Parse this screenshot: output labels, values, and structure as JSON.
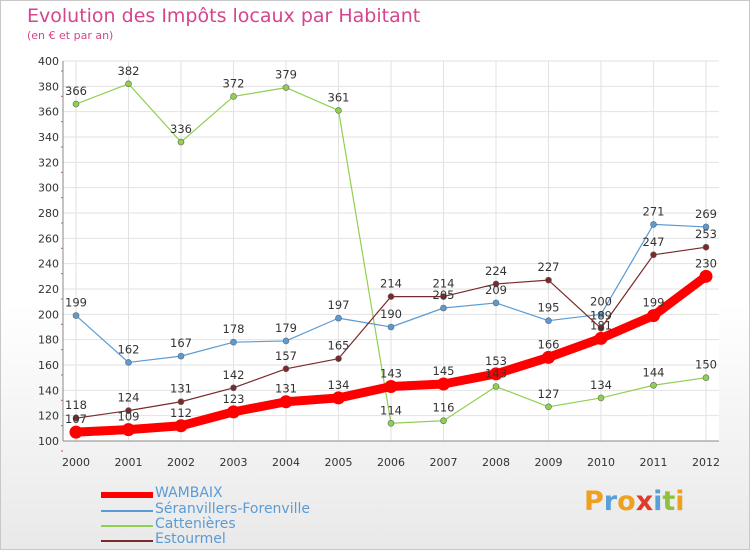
{
  "chart_data": {
    "type": "line",
    "title": "Evolution des Impôts locaux par Habitant",
    "subtitle": "(en € et par an)",
    "x": [
      "2000",
      "2001",
      "2002",
      "2003",
      "2004",
      "2005",
      "2006",
      "2007",
      "2008",
      "2009",
      "2010",
      "2011",
      "2012"
    ],
    "ylim": [
      100,
      400
    ],
    "yticks": [
      "100",
      "120",
      "140",
      "160",
      "180",
      "200",
      "220",
      "240",
      "260",
      "280",
      "300",
      "320",
      "340",
      "360",
      "380",
      "400"
    ],
    "grid": true,
    "legend_position": "bottom-left",
    "series": [
      {
        "name": "WAMBAIX",
        "color": "#ff0000",
        "values": [
          107,
          109,
          112,
          123,
          131,
          134,
          143,
          145,
          153,
          166,
          181,
          199,
          230
        ],
        "labels": [
          "107",
          "109",
          "112",
          "123",
          "131",
          "134",
          "143",
          "145",
          "153",
          "166",
          "181",
          "199",
          "230"
        ]
      },
      {
        "name": "Séranvillers-Forenville",
        "color": "#5b9bd5",
        "values": [
          199,
          162,
          167,
          178,
          179,
          197,
          190,
          205,
          209,
          195,
          200,
          271,
          269
        ],
        "labels": [
          "199",
          "162",
          "167",
          "178",
          "179",
          "197",
          "190",
          "205",
          "209",
          "195",
          "200",
          "271",
          "269"
        ]
      },
      {
        "name": "Cattenières",
        "color": "#90d050",
        "values": [
          366,
          382,
          336,
          372,
          379,
          361,
          114,
          116,
          143,
          127,
          134,
          144,
          150
        ],
        "labels": [
          "366",
          "382",
          "336",
          "372",
          "379",
          "361",
          "114",
          "116",
          "143",
          "127",
          "134",
          "144",
          "150"
        ]
      },
      {
        "name": "Estourmel",
        "color": "#7a2a2a",
        "values": [
          118,
          124,
          131,
          142,
          157,
          165,
          214,
          214,
          224,
          227,
          189,
          247,
          253
        ],
        "labels": [
          "118",
          "124",
          "131",
          "142",
          "157",
          "165",
          "214",
          "214",
          "224",
          "227",
          "189",
          "247",
          "253"
        ]
      }
    ]
  },
  "logo": {
    "text": "Proxiti",
    "colors": [
      "#f0a020",
      "#5aa0d8",
      "#f0a020",
      "#e23a2a",
      "#5aa0d8",
      "#90c040",
      "#f0a020"
    ]
  }
}
